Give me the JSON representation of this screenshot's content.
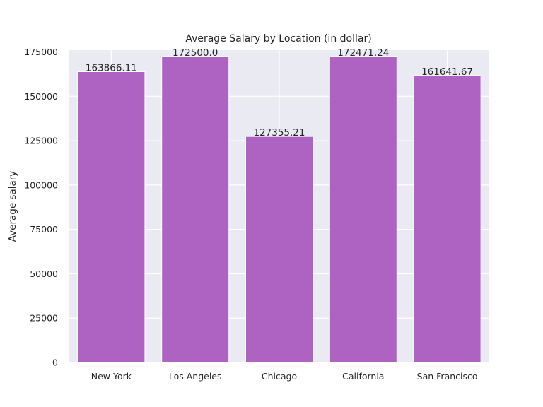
{
  "chart_data": {
    "type": "bar",
    "title": "Average Salary by Location (in dollar)",
    "xlabel": "",
    "ylabel": "Average salary",
    "categories": [
      "New York",
      "Los Angeles",
      "Chicago",
      "California",
      "San Francisco"
    ],
    "values": [
      163866.11,
      172500.0,
      127355.21,
      172471.24,
      161641.67
    ],
    "data_labels": [
      "163866.11",
      "172500.0",
      "127355.21",
      "172471.24",
      "161641.67"
    ],
    "ylim": [
      0,
      176000
    ],
    "yticks": [
      0,
      25000,
      50000,
      75000,
      100000,
      125000,
      150000,
      175000
    ],
    "grid": true,
    "legend": "none",
    "colors": {
      "bar": "#ae63c2",
      "bar_edge": "#ffffff",
      "plot_background": "#eaeaf2",
      "grid": "#ffffff",
      "text": "#262626"
    }
  }
}
